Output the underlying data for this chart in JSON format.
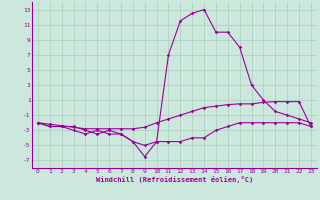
{
  "xlabel": "Windchill (Refroidissement éolien,°C)",
  "ylabel": "",
  "background_color": "#cce8dd",
  "line_color": "#990099",
  "grid_color": "#aaccbb",
  "hours": [
    0,
    1,
    2,
    3,
    4,
    5,
    6,
    7,
    8,
    9,
    10,
    11,
    12,
    13,
    14,
    15,
    16,
    17,
    18,
    19,
    20,
    21,
    22,
    23
  ],
  "series1": [
    -2,
    -2.5,
    -2.5,
    -3,
    -3.5,
    -3,
    -3.5,
    -3.5,
    -4.5,
    -6.5,
    -4.5,
    7,
    11.5,
    12.5,
    13,
    10,
    10,
    8,
    3,
    1,
    -0.5,
    -1,
    -1.5,
    -2
  ],
  "series2": [
    -2,
    -2.5,
    -2.5,
    -2.5,
    -3,
    -3.5,
    -3,
    -3.5,
    -4.5,
    -5,
    -4.5,
    -4.5,
    -4.5,
    -4,
    -4,
    -3,
    -2.5,
    -2,
    -2,
    -2,
    -2,
    -2,
    -2,
    -2.5
  ],
  "series3": [
    -2,
    -2.2,
    -2.4,
    -2.6,
    -2.8,
    -2.8,
    -2.8,
    -2.8,
    -2.8,
    -2.6,
    -2,
    -1.5,
    -1,
    -0.5,
    0,
    0.2,
    0.4,
    0.5,
    0.5,
    0.7,
    0.8,
    0.8,
    0.8,
    -2.5
  ],
  "ylim": [
    -8,
    14
  ],
  "xlim": [
    -0.5,
    23.5
  ],
  "yticks": [
    -7,
    -5,
    -3,
    -1,
    1,
    3,
    5,
    7,
    9,
    11,
    13
  ],
  "xticks": [
    0,
    1,
    2,
    3,
    4,
    5,
    6,
    7,
    8,
    9,
    10,
    11,
    12,
    13,
    14,
    15,
    16,
    17,
    18,
    19,
    20,
    21,
    22,
    23
  ],
  "marker": "D",
  "markersize": 1.8,
  "linewidth": 0.8,
  "tick_fontsize": 4.5,
  "label_fontsize": 5.0
}
